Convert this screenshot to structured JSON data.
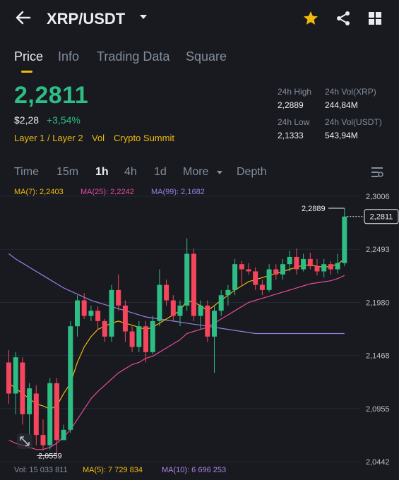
{
  "header": {
    "title": "XRP/USDT",
    "icons": [
      "back-arrow-icon",
      "dropdown-caret-icon",
      "star-icon",
      "share-icon",
      "grid-icon"
    ],
    "star_color": "#f0b90b"
  },
  "tabs": [
    {
      "label": "Price",
      "active": true
    },
    {
      "label": "Info",
      "active": false
    },
    {
      "label": "Trading Data",
      "active": false
    },
    {
      "label": "Square",
      "active": false
    }
  ],
  "price": {
    "last": "2,2811",
    "usd": "$2,28",
    "change": "+3,54%",
    "tags": [
      "Layer 1 / Layer 2",
      "Vol",
      "Crypto Summit"
    ],
    "up_color": "#2ebd85",
    "down_color": "#f6465d"
  },
  "stats": {
    "high_label": "24h High",
    "high_value": "2,2889",
    "vol_xrp_label": "24h Vol(XRP)",
    "vol_xrp_value": "244,84M",
    "low_label": "24h Low",
    "low_value": "2,1333",
    "vol_usdt_label": "24h Vol(USDT)",
    "vol_usdt_value": "543,94M"
  },
  "timeframes": [
    {
      "label": "Time",
      "active": false
    },
    {
      "label": "15m",
      "active": false
    },
    {
      "label": "1h",
      "active": true
    },
    {
      "label": "4h",
      "active": false
    },
    {
      "label": "1d",
      "active": false
    },
    {
      "label": "More",
      "active": false
    },
    {
      "label": "Depth",
      "active": false
    }
  ],
  "ma_legend": {
    "ma7": "MA(7): 2,2403",
    "ma25": "MA(25): 2,2242",
    "ma99": "MA(99): 2,1682",
    "ma7_color": "#f0b90b",
    "ma25_color": "#e44a9c",
    "ma99_color": "#9a7ee0"
  },
  "chart": {
    "y_ticks": [
      "2,3006",
      "2,2493",
      "2,1980",
      "2,1468",
      "2,0955",
      "2,0442"
    ],
    "y_tick_values": [
      2.3006,
      2.2493,
      2.198,
      2.1468,
      2.0955,
      2.0442
    ],
    "current_price_label": "2,2811",
    "high_marker": "2,2889",
    "low_marker": "2,0559"
  },
  "chart_data": {
    "type": "candlestick",
    "ylim": [
      2.0442,
      2.3006
    ],
    "candles": [
      [
        2.14,
        2.152,
        2.1,
        2.11
      ],
      [
        2.11,
        2.15,
        2.09,
        2.145
      ],
      [
        2.14,
        2.145,
        2.08,
        2.09
      ],
      [
        2.09,
        2.12,
        2.07,
        2.115
      ],
      [
        2.11,
        2.118,
        2.06,
        2.07
      ],
      [
        2.07,
        2.085,
        2.055,
        2.06
      ],
      [
        2.06,
        2.125,
        2.056,
        2.12
      ],
      [
        2.12,
        2.125,
        2.05,
        2.065
      ],
      [
        2.065,
        2.08,
        2.065,
        2.075
      ],
      [
        2.075,
        2.18,
        2.072,
        2.175
      ],
      [
        2.175,
        2.205,
        2.165,
        2.2
      ],
      [
        2.2,
        2.207,
        2.182,
        2.185
      ],
      [
        2.185,
        2.195,
        2.18,
        2.19
      ],
      [
        2.19,
        2.194,
        2.172,
        2.18
      ],
      [
        2.18,
        2.182,
        2.16,
        2.165
      ],
      [
        2.165,
        2.215,
        2.16,
        2.21
      ],
      [
        2.21,
        2.225,
        2.19,
        2.195
      ],
      [
        2.195,
        2.2,
        2.16,
        2.17
      ],
      [
        2.17,
        2.175,
        2.15,
        2.155
      ],
      [
        2.155,
        2.18,
        2.15,
        2.175
      ],
      [
        2.175,
        2.18,
        2.14,
        2.15
      ],
      [
        2.15,
        2.185,
        2.148,
        2.18
      ],
      [
        2.18,
        2.23,
        2.175,
        2.215
      ],
      [
        2.215,
        2.22,
        2.195,
        2.2
      ],
      [
        2.2,
        2.205,
        2.18,
        2.185
      ],
      [
        2.185,
        2.2,
        2.175,
        2.195
      ],
      [
        2.195,
        2.26,
        2.19,
        2.245
      ],
      [
        2.245,
        2.25,
        2.18,
        2.185
      ],
      [
        2.185,
        2.2,
        2.172,
        2.195
      ],
      [
        2.195,
        2.2,
        2.16,
        2.165
      ],
      [
        2.165,
        2.195,
        2.13,
        2.19
      ],
      [
        2.19,
        2.21,
        2.185,
        2.205
      ],
      [
        2.205,
        2.215,
        2.195,
        2.21
      ],
      [
        2.21,
        2.24,
        2.205,
        2.235
      ],
      [
        2.235,
        2.238,
        2.215,
        2.23
      ],
      [
        2.23,
        2.236,
        2.225,
        2.228
      ],
      [
        2.228,
        2.232,
        2.21,
        2.215
      ],
      [
        2.215,
        2.22,
        2.205,
        2.21
      ],
      [
        2.21,
        2.235,
        2.208,
        2.23
      ],
      [
        2.23,
        2.235,
        2.22,
        2.225
      ],
      [
        2.225,
        2.24,
        2.22,
        2.235
      ],
      [
        2.235,
        2.248,
        2.228,
        2.242
      ],
      [
        2.242,
        2.25,
        2.225,
        2.23
      ],
      [
        2.23,
        2.245,
        2.228,
        2.24
      ],
      [
        2.24,
        2.246,
        2.23,
        2.233
      ],
      [
        2.233,
        2.24,
        2.224,
        2.228
      ],
      [
        2.228,
        2.24,
        2.222,
        2.235
      ],
      [
        2.235,
        2.238,
        2.225,
        2.23
      ],
      [
        2.23,
        2.245,
        2.226,
        2.236
      ],
      [
        2.236,
        2.289,
        2.233,
        2.281
      ]
    ],
    "ma7": [
      2.12,
      2.115,
      2.11,
      2.105,
      2.1,
      2.098,
      2.095,
      2.098,
      2.11,
      2.12,
      2.14,
      2.155,
      2.165,
      2.172,
      2.175,
      2.178,
      2.18,
      2.178,
      2.176,
      2.174,
      2.172,
      2.174,
      2.178,
      2.182,
      2.186,
      2.19,
      2.2,
      2.198,
      2.195,
      2.19,
      2.195,
      2.2,
      2.205,
      2.21,
      2.214,
      2.218,
      2.22,
      2.222,
      2.224,
      2.226,
      2.228,
      2.23,
      2.232,
      2.234,
      2.234,
      2.233,
      2.232,
      2.233,
      2.235,
      2.24
    ],
    "ma25": [
      2.065,
      2.062,
      2.06,
      2.058,
      2.056,
      2.056,
      2.058,
      2.062,
      2.068,
      2.075,
      2.085,
      2.095,
      2.105,
      2.112,
      2.118,
      2.124,
      2.13,
      2.134,
      2.138,
      2.14,
      2.144,
      2.146,
      2.15,
      2.154,
      2.158,
      2.162,
      2.168,
      2.17,
      2.172,
      2.174,
      2.178,
      2.182,
      2.186,
      2.19,
      2.194,
      2.198,
      2.2,
      2.202,
      2.204,
      2.206,
      2.208,
      2.21,
      2.212,
      2.214,
      2.216,
      2.217,
      2.218,
      2.219,
      2.221,
      2.224
    ],
    "ma99": [
      2.245,
      2.24,
      2.236,
      2.232,
      2.228,
      2.224,
      2.22,
      2.216,
      2.212,
      2.209,
      2.206,
      2.203,
      2.2,
      2.198,
      2.196,
      2.194,
      2.192,
      2.19,
      2.188,
      2.186,
      2.184,
      2.183,
      2.182,
      2.181,
      2.18,
      2.179,
      2.178,
      2.177,
      2.176,
      2.175,
      2.174,
      2.173,
      2.172,
      2.171,
      2.17,
      2.169,
      2.168,
      2.168,
      2.168,
      2.168,
      2.168,
      2.168,
      2.168,
      2.168,
      2.168,
      2.168,
      2.168,
      2.168,
      2.168,
      2.168
    ]
  },
  "volume": {
    "vol": "Vol: 15 033 811",
    "ma5": "MA(5): 7 729 834",
    "ma10": "MA(10): 6 696 253"
  }
}
